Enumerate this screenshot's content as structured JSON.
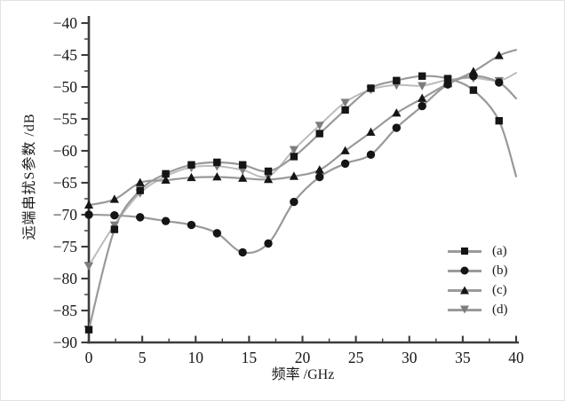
{
  "chart_data": {
    "type": "line",
    "title": "",
    "xlabel": "频率 /GHz",
    "ylabel": "远端串扰S参数 /dB",
    "xlim": [
      0,
      40
    ],
    "ylim": [
      -90,
      -40
    ],
    "xticks_major": [
      0,
      5,
      10,
      15,
      20,
      25,
      30,
      35,
      40
    ],
    "yticks_major": [
      -40,
      -45,
      -50,
      -55,
      -60,
      -65,
      -70,
      -75,
      -80,
      -85,
      -90
    ],
    "minor_tick_step": 2.5,
    "grid": false,
    "legend_position": "lower right",
    "axis_color": "#3c3c3c",
    "x": [
      0,
      2.4,
      4.8,
      7.2,
      9.6,
      12,
      14.4,
      16.8,
      19.2,
      21.6,
      24,
      26.4,
      28.8,
      31.2,
      33.6,
      36,
      38.4,
      40
    ],
    "series": [
      {
        "name": "(a)",
        "marker": "square",
        "line_color": "#999999",
        "marker_color": "#151515",
        "values": [
          -88.0,
          -72.3,
          -66.2,
          -63.6,
          -62.2,
          -61.8,
          -62.2,
          -63.2,
          -60.9,
          -57.3,
          -53.6,
          -50.2,
          -49.0,
          -48.3,
          -48.7,
          -50.5,
          -55.3,
          -64.0
        ]
      },
      {
        "name": "(b)",
        "marker": "circle",
        "line_color": "#999999",
        "marker_color": "#151515",
        "values": [
          -70.0,
          -70.1,
          -70.4,
          -71.0,
          -71.6,
          -72.9,
          -75.9,
          -74.5,
          -68.0,
          -64.1,
          -62.0,
          -60.6,
          -56.4,
          -53.0,
          -49.6,
          -48.3,
          -49.3,
          -51.8
        ]
      },
      {
        "name": "(c)",
        "marker": "triangle-up",
        "line_color": "#999999",
        "marker_color": "#151515",
        "values": [
          -68.5,
          -67.6,
          -65.0,
          -64.6,
          -64.2,
          -64.1,
          -64.3,
          -64.5,
          -64.0,
          -63.0,
          -60.0,
          -57.1,
          -54.1,
          -51.8,
          -49.5,
          -47.6,
          -45.1,
          -44.2
        ]
      },
      {
        "name": "(d)",
        "marker": "triangle-down",
        "line_color": "#bcbcbc",
        "marker_color": "#7d7d7d",
        "values": [
          -78.0,
          -71.6,
          -66.6,
          -64.0,
          -62.6,
          -62.4,
          -63.0,
          -64.0,
          -59.8,
          -56.0,
          -52.4,
          -50.4,
          -49.7,
          -49.8,
          -48.9,
          -48.6,
          -49.0,
          -47.8
        ]
      }
    ]
  }
}
